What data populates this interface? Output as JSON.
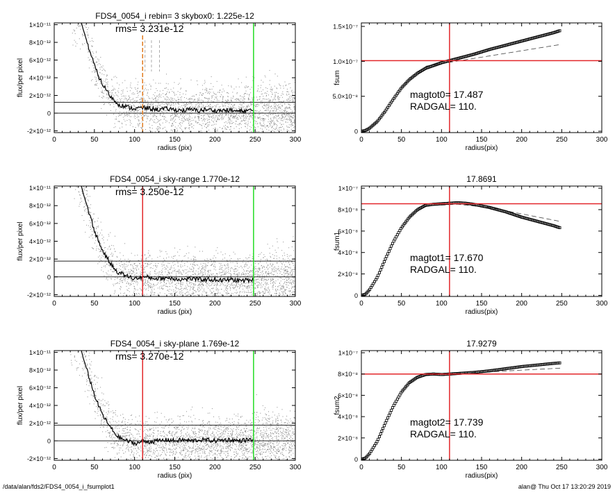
{
  "footer": {
    "left": "/data/alan/fds2/FDS4_0054_i_fsumplot1",
    "right": "alan@  Thu Oct 17 13:20:29 2019"
  },
  "colors": {
    "grey_points": "#8a8a8a",
    "red_line": "#e3262a",
    "green_line": "#22dd22",
    "orange_dashed": "#e07a1f"
  },
  "chart_data": [
    {
      "type": "scatter",
      "title": "FDS4_0054_i rebin= 3    skybox0:  1.225e-12",
      "rms_label": "rms= 3.231e-12",
      "xlabel": "radius (pix)",
      "ylabel": "flux/per pixel",
      "xlim": [
        0,
        300
      ],
      "ylim": [
        -2.2e-12,
        1.02e-11
      ],
      "xticks": [
        0,
        50,
        100,
        150,
        200,
        250,
        300
      ],
      "xticklabels": [
        "0",
        "50",
        "100",
        "150",
        "200",
        "250",
        "300"
      ],
      "yticks": [
        -2e-12,
        0,
        2e-12,
        4e-12,
        6e-12,
        8e-12,
        1e-11
      ],
      "yticklabels": [
        "-2×10⁻¹²",
        "0",
        "2×10⁻¹²",
        "4×10⁻¹²",
        "6×10⁻¹²",
        "8×10⁻¹²",
        "1×10⁻¹¹"
      ],
      "profile": {
        "x": [
          33,
          36,
          40,
          45,
          50,
          55,
          60,
          65,
          70,
          75,
          80,
          90,
          100,
          110,
          120,
          130,
          140,
          150,
          160,
          170,
          180,
          190,
          200,
          210,
          220,
          230,
          240,
          248
        ],
        "y": [
          1.05e-11,
          9.5e-12,
          8.3e-12,
          6.8e-12,
          5.4e-12,
          4.2e-12,
          3.3e-12,
          2.6e-12,
          1.9e-12,
          1.4e-12,
          1e-12,
          7e-13,
          5e-13,
          6e-13,
          5e-13,
          4e-13,
          5e-13,
          4e-13,
          3e-13,
          4e-13,
          3e-13,
          4e-13,
          3e-13,
          3e-13,
          3e-13,
          2e-13,
          3e-13,
          3e-13
        ]
      },
      "hlines": [
        1.225e-12,
        0
      ],
      "vline_red": null,
      "vline_green": 248,
      "orange_dashed": [
        110
      ],
      "grey_dashed": [
        113,
        121,
        131
      ]
    },
    {
      "type": "scatter",
      "title": "FDS4_0054_i sky-range  1.770e-12",
      "rms_label": "rms= 3.250e-12",
      "xlabel": "radius (pix)",
      "ylabel": "flux/per pixel",
      "xlim": [
        0,
        300
      ],
      "ylim": [
        -2.2e-12,
        1.02e-11
      ],
      "xticks": [
        0,
        50,
        100,
        150,
        200,
        250,
        300
      ],
      "xticklabels": [
        "0",
        "50",
        "100",
        "150",
        "200",
        "250",
        "300"
      ],
      "yticks": [
        -2e-12,
        0,
        2e-12,
        4e-12,
        6e-12,
        8e-12,
        1e-11
      ],
      "yticklabels": [
        "-2×10⁻¹²",
        "0",
        "2×10⁻¹²",
        "4×10⁻¹²",
        "6×10⁻¹²",
        "8×10⁻¹²",
        "1×10⁻¹¹"
      ],
      "profile": {
        "x": [
          33,
          36,
          40,
          45,
          50,
          55,
          60,
          65,
          70,
          75,
          80,
          90,
          100,
          110,
          120,
          130,
          140,
          150,
          160,
          170,
          180,
          190,
          200,
          210,
          220,
          230,
          240,
          248
        ],
        "y": [
          1.05e-11,
          9.4e-12,
          8.2e-12,
          6.7e-12,
          5.2e-12,
          4e-12,
          3e-12,
          2.2e-12,
          1.5e-12,
          9e-13,
          5e-13,
          1e-13,
          -2e-13,
          0,
          -1e-13,
          -2e-13,
          -1e-13,
          -2e-13,
          -3e-13,
          -2e-13,
          -3e-13,
          -3e-13,
          -3e-13,
          -4e-13,
          -3e-13,
          -4e-13,
          -4e-13,
          -3e-13
        ]
      },
      "hlines": [
        1.77e-12,
        0
      ],
      "vline_red": 110,
      "vline_green": 248,
      "orange_dashed": [],
      "grey_dashed": []
    },
    {
      "type": "scatter",
      "title": "FDS4_0054_i sky-plane  1.769e-12",
      "rms_label": "rms= 3.270e-12",
      "xlabel": "radius (pix)",
      "ylabel": "flux/per pixel",
      "xlim": [
        0,
        300
      ],
      "ylim": [
        -2.2e-12,
        1.02e-11
      ],
      "xticks": [
        0,
        50,
        100,
        150,
        200,
        250,
        300
      ],
      "xticklabels": [
        "0",
        "50",
        "100",
        "150",
        "200",
        "250",
        "300"
      ],
      "yticks": [
        -2e-12,
        0,
        2e-12,
        4e-12,
        6e-12,
        8e-12,
        1e-11
      ],
      "yticklabels": [
        "-2×10⁻¹²",
        "0",
        "2×10⁻¹²",
        "4×10⁻¹²",
        "6×10⁻¹²",
        "8×10⁻¹²",
        "1×10⁻¹¹"
      ],
      "profile": {
        "x": [
          33,
          36,
          40,
          45,
          50,
          55,
          60,
          65,
          70,
          75,
          80,
          90,
          100,
          110,
          120,
          130,
          140,
          150,
          160,
          170,
          180,
          190,
          200,
          210,
          220,
          230,
          240,
          248
        ],
        "y": [
          1.05e-11,
          9.4e-12,
          8.2e-12,
          6.7e-12,
          5.2e-12,
          4e-12,
          3e-12,
          2.2e-12,
          1.5e-12,
          9e-13,
          4e-13,
          0,
          -3e-13,
          -1e-13,
          -1e-13,
          0,
          1e-13,
          0,
          1e-13,
          0,
          1e-13,
          1e-13,
          0,
          1e-13,
          1e-13,
          0,
          1e-13,
          1e-13
        ]
      },
      "hlines": [
        1.769e-12,
        0
      ],
      "vline_red": 110,
      "vline_green": 248,
      "orange_dashed": [],
      "grey_dashed": []
    },
    {
      "type": "line",
      "title": "",
      "xlabel": "radius(pix)",
      "ylabel": "fsum",
      "xlim": [
        0,
        300
      ],
      "ylim": [
        -2e-09,
        1.55e-07
      ],
      "xticks": [
        0,
        50,
        100,
        150,
        200,
        250,
        300
      ],
      "xticklabels": [
        "0",
        "50",
        "100",
        "150",
        "200",
        "250",
        "300"
      ],
      "yticks": [
        0,
        5e-08,
        1e-07,
        1.5e-07
      ],
      "yticklabels": [
        "0",
        "5.0×10⁻⁸",
        "1.0×10⁻⁷",
        "1.5×10⁻⁷"
      ],
      "annot1": "magtot0=  17.487",
      "annot2": "RADGAL=     110.",
      "hline_red": 1.01e-07,
      "vline_red": 110,
      "curve": {
        "x": [
          0,
          5,
          10,
          20,
          30,
          40,
          50,
          60,
          70,
          80,
          90,
          100,
          110,
          120,
          140,
          160,
          180,
          200,
          220,
          240,
          248
        ],
        "y": [
          0,
          1e-09,
          4e-09,
          1.4e-08,
          2.9e-08,
          4.6e-08,
          6.2e-08,
          7.4e-08,
          8.3e-08,
          9e-08,
          9.4e-08,
          9.8e-08,
          1.01e-07,
          1.04e-07,
          1.1e-07,
          1.17e-07,
          1.23e-07,
          1.29e-07,
          1.35e-07,
          1.41e-07,
          1.44e-07
        ]
      },
      "dashed": {
        "x": [
          80,
          248
        ],
        "y": [
          9.3e-08,
          1.24e-07
        ]
      }
    },
    {
      "type": "line",
      "title": "17.8691",
      "xlabel": "radius(pix)",
      "ylabel": "fsum1",
      "xlim": [
        0,
        300
      ],
      "ylim": [
        -1e-09,
        1.02e-07
      ],
      "xticks": [
        0,
        50,
        100,
        150,
        200,
        250,
        300
      ],
      "xticklabels": [
        "0",
        "50",
        "100",
        "150",
        "200",
        "250",
        "300"
      ],
      "yticks": [
        0,
        2e-08,
        4e-08,
        6e-08,
        8e-08,
        1e-07
      ],
      "yticklabels": [
        "0",
        "2×10⁻⁸",
        "4×10⁻⁸",
        "6×10⁻⁸",
        "8×10⁻⁸",
        "1×10⁻⁷"
      ],
      "annot1": "magtot1=  17.670",
      "annot2": "RADGAL=     110.",
      "hline_red": 8.55e-08,
      "vline_red": 110,
      "curve": {
        "x": [
          0,
          5,
          10,
          20,
          30,
          40,
          50,
          60,
          70,
          80,
          90,
          100,
          110,
          120,
          130,
          140,
          160,
          180,
          200,
          220,
          240,
          248
        ],
        "y": [
          0,
          1e-09,
          5e-09,
          1.7e-08,
          3.4e-08,
          5e-08,
          6.3e-08,
          7.3e-08,
          8e-08,
          8.4e-08,
          8.5e-08,
          8.55e-08,
          8.6e-08,
          8.65e-08,
          8.6e-08,
          8.5e-08,
          8.2e-08,
          7.8e-08,
          7.3e-08,
          6.9e-08,
          6.5e-08,
          6.3e-08
        ]
      },
      "dashed": {
        "x": [
          80,
          120,
          160,
          200,
          248
        ],
        "y": [
          8.35e-08,
          8.5e-08,
          8.2e-08,
          7.6e-08,
          6.9e-08
        ]
      }
    },
    {
      "type": "line",
      "title": "17.9279",
      "xlabel": "radius(pix)",
      "ylabel": "fsum2",
      "xlim": [
        0,
        300
      ],
      "ylim": [
        -1e-09,
        1.02e-07
      ],
      "xticks": [
        0,
        50,
        100,
        150,
        200,
        250,
        300
      ],
      "xticklabels": [
        "0",
        "50",
        "100",
        "150",
        "200",
        "250",
        "300"
      ],
      "yticks": [
        0,
        2e-08,
        4e-08,
        6e-08,
        8e-08,
        1e-07
      ],
      "yticklabels": [
        "0",
        "2×10⁻⁸",
        "4×10⁻⁸",
        "6×10⁻⁸",
        "8×10⁻⁸",
        "1×10⁻⁷"
      ],
      "annot1": "magtot2=  17.739",
      "annot2": "RADGAL=     110.",
      "hline_red": 8e-08,
      "vline_red": 110,
      "curve": {
        "x": [
          0,
          5,
          10,
          20,
          30,
          40,
          50,
          60,
          70,
          80,
          90,
          100,
          110,
          120,
          140,
          160,
          180,
          200,
          220,
          240,
          248
        ],
        "y": [
          0,
          1e-09,
          5e-09,
          1.7e-08,
          3.4e-08,
          5e-08,
          6.3e-08,
          7.2e-08,
          7.7e-08,
          7.95e-08,
          8e-08,
          7.95e-08,
          8e-08,
          8.05e-08,
          8.15e-08,
          8.3e-08,
          8.5e-08,
          8.7e-08,
          8.85e-08,
          9e-08,
          9.05e-08
        ]
      },
      "dashed": {
        "x": [
          80,
          248
        ],
        "y": [
          7.9e-08,
          8.55e-08
        ]
      }
    }
  ]
}
